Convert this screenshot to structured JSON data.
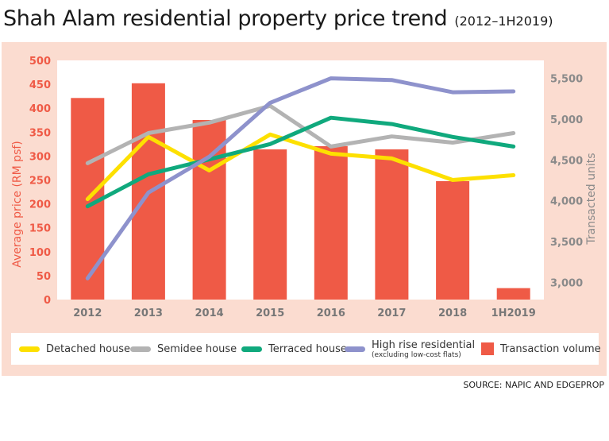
{
  "title": "Shah Alam residential property price trend",
  "subtitle": "(2012–1H2019)",
  "source": "SOURCE: NAPIC AND EDGEPROP",
  "chart_data": {
    "type": "bar+line",
    "categories": [
      "2012",
      "2013",
      "2014",
      "2015",
      "2016",
      "2017",
      "2018",
      "1H2019"
    ],
    "left_axis": {
      "label": "Average price (RM psf)",
      "ylim": [
        0,
        500
      ],
      "ticks": [
        "0",
        "50",
        "100",
        "150",
        "200",
        "250",
        "300",
        "350",
        "400",
        "450",
        "500"
      ]
    },
    "right_axis": {
      "label": "Transacted units",
      "ylim": [
        2790,
        5720
      ],
      "ticks": [
        "3,000",
        "3,500",
        "4,000",
        "4,500",
        "5,000",
        "5,500"
      ]
    },
    "series": [
      {
        "name": "Detached house",
        "kind": "line",
        "axis": "left",
        "color": "#fde000",
        "values": [
          210,
          340,
          270,
          345,
          305,
          295,
          250,
          260
        ]
      },
      {
        "name": "Semidee house",
        "kind": "line",
        "axis": "left",
        "color": "#b3b3b3",
        "values": [
          285,
          348,
          370,
          405,
          320,
          341,
          328,
          348
        ]
      },
      {
        "name": "Terraced house",
        "kind": "line",
        "axis": "left",
        "color": "#10a97d",
        "values": [
          195,
          262,
          293,
          325,
          380,
          367,
          340,
          320
        ]
      },
      {
        "name": "High rise residential",
        "sub_label": "(excluding low-cost flats)",
        "kind": "line",
        "axis": "right",
        "color": "#8e92cc",
        "values": [
          3050,
          4100,
          4540,
          5200,
          5500,
          5480,
          5330,
          5340
        ]
      },
      {
        "name": "Transaction volume",
        "kind": "bar",
        "axis": "right",
        "color": "#ef5a46",
        "values": [
          5260,
          5440,
          4990,
          4630,
          4670,
          4630,
          4240,
          2930
        ]
      }
    ]
  }
}
